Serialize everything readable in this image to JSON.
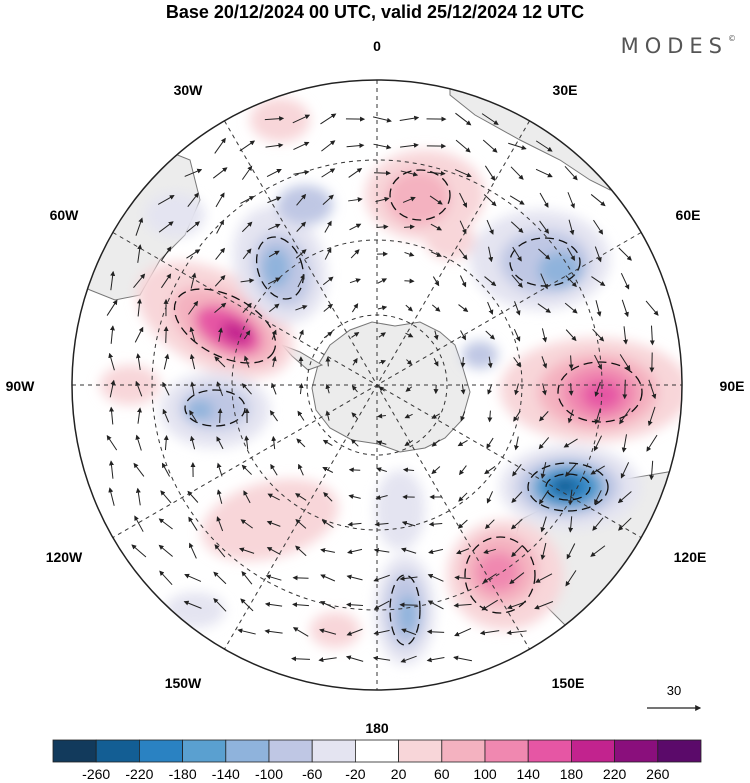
{
  "title": "Base 20/12/2024 00 UTC, valid 25/12/2024 12 UTC",
  "logo": "MODES",
  "logo_mark": "©",
  "map": {
    "projection": "south polar stereographic",
    "lon_labels": {
      "top": "0",
      "upper_left": "30W",
      "upper_right": "30E",
      "left_upper": "60W",
      "right_upper": "60E",
      "left": "90W",
      "right": "90E",
      "left_lower": "120W",
      "right_lower": "120E",
      "lower_left": "150W",
      "lower_right": "150E",
      "bottom": "180"
    },
    "reference_vector": "30",
    "colors": {
      "land": "#ececec",
      "coast": "#777777",
      "grid": "#333333"
    }
  },
  "colorbar": {
    "levels": [
      "-260",
      "-220",
      "-180",
      "-140",
      "-100",
      "-60",
      "-20",
      "20",
      "60",
      "100",
      "140",
      "180",
      "220",
      "260"
    ],
    "colors": [
      "#123a5c",
      "#135e94",
      "#2a82c2",
      "#5aa0d0",
      "#8fb3dc",
      "#bfc7e4",
      "#e4e4f1",
      "#ffffff",
      "#f8d6d9",
      "#f4b2c0",
      "#f088b0",
      "#e656a4",
      "#c2238e",
      "#8a0f7c",
      "#5b0a6a"
    ]
  }
}
